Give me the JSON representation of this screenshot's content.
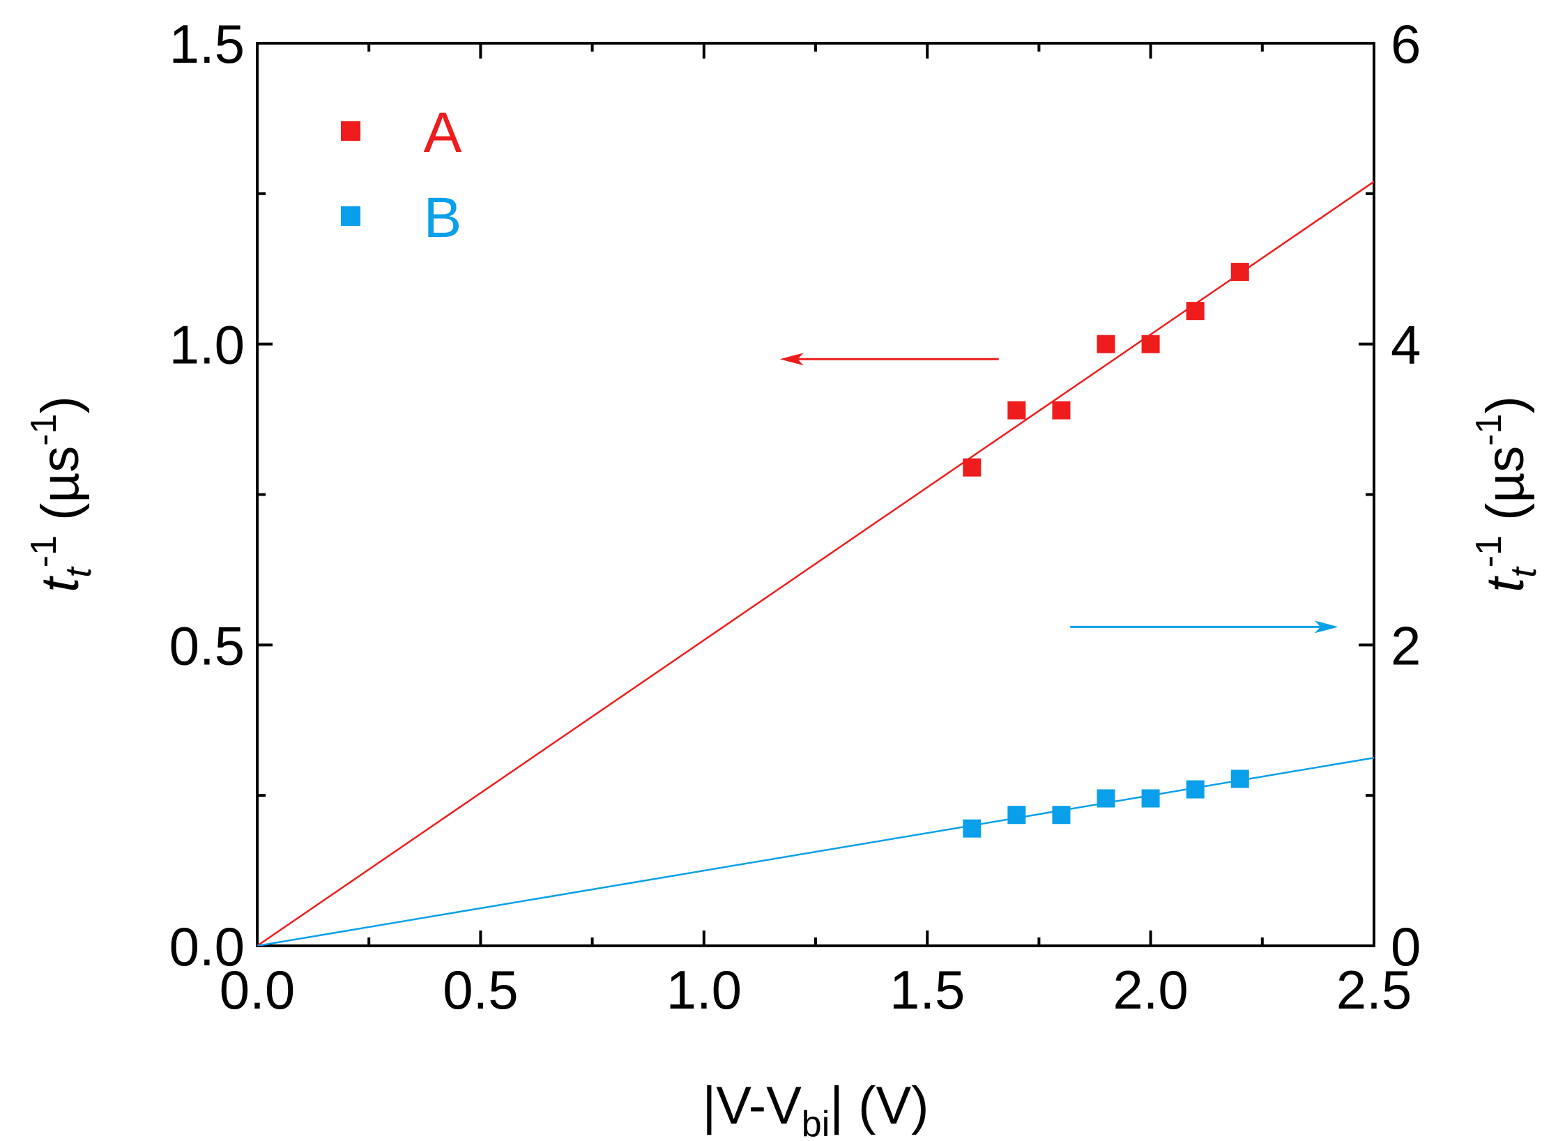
{
  "chart_data": {
    "type": "scatter",
    "xlabel": {
      "prefix": "|V-V",
      "subscript": "bi",
      "suffix": "| (V)"
    },
    "ylabel_left": {
      "base": "t",
      "subscript": "t",
      "superscript": "-1",
      "unit_open": " (µs",
      "unit_sup": "-1",
      "unit_close": ")"
    },
    "ylabel_right": {
      "base": "t",
      "subscript": "t",
      "superscript": "-1",
      "unit_open": " (µs",
      "unit_sup": "-1",
      "unit_close": ")"
    },
    "xlim": [
      0,
      2.5
    ],
    "ylim_left": [
      0,
      1.5
    ],
    "ylim_right": [
      0,
      6
    ],
    "x_ticks": [
      "0.0",
      "0.5",
      "1.0",
      "1.5",
      "2.0",
      "2.5"
    ],
    "y_left_ticks": [
      "0.0",
      "0.5",
      "1.0",
      "1.5"
    ],
    "y_right_ticks": [
      "0",
      "2",
      "4",
      "6"
    ],
    "grid": false,
    "legend_position": "top-left",
    "series": [
      {
        "name": "A",
        "axis": "left",
        "color": "#ee1c1c",
        "x": [
          1.6,
          1.7,
          1.8,
          1.9,
          2.0,
          2.1,
          2.2
        ],
        "y": [
          0.795,
          0.89,
          0.89,
          1.0,
          1.0,
          1.055,
          1.12
        ],
        "fit": {
          "slope": 0.508,
          "intercept": 0
        }
      },
      {
        "name": "B",
        "axis": "right",
        "color": "#0a9fea",
        "x": [
          1.6,
          1.7,
          1.8,
          1.9,
          2.0,
          2.1,
          2.2
        ],
        "y": [
          0.78,
          0.87,
          0.87,
          0.98,
          0.98,
          1.04,
          1.11
        ],
        "fit": {
          "slope": 0.5,
          "intercept": 0
        }
      }
    ],
    "annotations": [
      {
        "name": "left-axis-arrow",
        "series": "A",
        "direction": "left",
        "x_from": 1.66,
        "x_to": 1.17,
        "y": 0.975,
        "axis": "left"
      },
      {
        "name": "right-axis-arrow",
        "series": "B",
        "direction": "right",
        "x_from": 1.82,
        "x_to": 2.42,
        "y": 2.12,
        "axis": "right"
      }
    ]
  }
}
